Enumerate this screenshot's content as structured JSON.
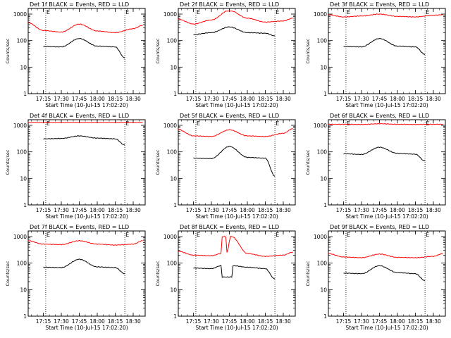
{
  "page": {
    "background": "#ffffff",
    "event_color": "#000000",
    "lld_color": "#ff0000"
  },
  "chart_data": [
    {
      "type": "line",
      "title": "Det 1f BLACK = Events, RED = LLD",
      "ylabel": "Counts/sec",
      "xlabel": "Start Time (10-Jul-15 17:02:20)",
      "y_scale": "log",
      "ylim": [
        1,
        1000
      ],
      "ytick_labels": [
        "1",
        "10",
        "100",
        "1000"
      ],
      "xtick_labels": [
        "17:15",
        "17:30",
        "17:45",
        "18:00",
        "18:15",
        "18:30"
      ],
      "markers": [
        "E",
        "E"
      ],
      "grid": false,
      "series": [
        {
          "name": "LLD",
          "color": "#ff0000",
          "x": [
            "17:02",
            "17:15",
            "17:30",
            "17:45",
            "18:00",
            "18:15",
            "18:30",
            "18:38"
          ],
          "values": [
            480,
            240,
            210,
            420,
            230,
            200,
            280,
            380
          ]
        },
        {
          "name": "Events",
          "color": "#000000",
          "x": [
            "17:15",
            "17:30",
            "17:45",
            "18:00",
            "18:15",
            "18:23"
          ],
          "values": [
            60,
            58,
            120,
            62,
            58,
            22
          ]
        }
      ]
    },
    {
      "type": "line",
      "title": "Det 2f BLACK = Events, RED = LLD",
      "ylabel": "Counts/sec",
      "xlabel": "Start Time (10-Jul-15 17:02:20)",
      "y_scale": "log",
      "ylim": [
        1,
        1000
      ],
      "ytick_labels": [
        "1",
        "10",
        "100",
        "1000"
      ],
      "xtick_labels": [
        "17:15",
        "17:30",
        "17:45",
        "18:00",
        "18:15",
        "18:30"
      ],
      "markers": [
        "E",
        "E"
      ],
      "grid": false,
      "series": [
        {
          "name": "LLD",
          "color": "#ff0000",
          "x": [
            "17:02",
            "17:15",
            "17:30",
            "17:45",
            "18:00",
            "18:15",
            "18:30",
            "18:38"
          ],
          "values": [
            650,
            420,
            600,
            1400,
            700,
            500,
            550,
            700
          ]
        },
        {
          "name": "Events",
          "color": "#000000",
          "x": [
            "17:15",
            "17:30",
            "17:45",
            "18:00",
            "18:15",
            "18:23"
          ],
          "values": [
            170,
            200,
            330,
            200,
            190,
            150
          ]
        }
      ]
    },
    {
      "type": "line",
      "title": "Det 3f BLACK = Events, RED = LLD",
      "ylabel": "Counts/sec",
      "xlabel": "Start Time (10-Jul-15 17:02:20)",
      "y_scale": "log",
      "ylim": [
        1,
        1000
      ],
      "ytick_labels": [
        "1",
        "10",
        "100",
        "1000"
      ],
      "xtick_labels": [
        "17:15",
        "17:30",
        "17:45",
        "18:00",
        "18:15",
        "18:30"
      ],
      "markers": [
        "E",
        "E"
      ],
      "grid": false,
      "series": [
        {
          "name": "LLD",
          "color": "#ff0000",
          "x": [
            "17:02",
            "17:15",
            "17:30",
            "17:45",
            "18:00",
            "18:15",
            "18:30",
            "18:38"
          ],
          "values": [
            950,
            780,
            850,
            1000,
            820,
            780,
            900,
            950
          ]
        },
        {
          "name": "Events",
          "color": "#000000",
          "x": [
            "17:15",
            "17:30",
            "17:45",
            "18:00",
            "18:15",
            "18:23"
          ],
          "values": [
            60,
            58,
            120,
            62,
            58,
            30
          ]
        }
      ]
    },
    {
      "type": "line",
      "title": "Det 4f BLACK = Events, RED = LLD",
      "ylabel": "Counts/sec",
      "xlabel": "Start Time (10-Jul-15 17:02:20)",
      "y_scale": "log",
      "ylim": [
        1,
        1000
      ],
      "ytick_labels": [
        "1",
        "10",
        "100",
        "1000"
      ],
      "xtick_labels": [
        "17:15",
        "17:30",
        "17:45",
        "18:00",
        "18:15",
        "18:30"
      ],
      "markers": [
        "E",
        "E"
      ],
      "grid": false,
      "series": [
        {
          "name": "LLD",
          "color": "#ff0000",
          "x": [
            "17:02",
            "17:15",
            "17:30",
            "17:45",
            "18:00",
            "18:15",
            "18:30",
            "18:38"
          ],
          "values": [
            1500,
            1500,
            1480,
            1700,
            1500,
            1450,
            1480,
            1550
          ]
        },
        {
          "name": "Events",
          "color": "#000000",
          "x": [
            "17:15",
            "17:30",
            "17:45",
            "18:00",
            "18:15",
            "18:23"
          ],
          "values": [
            310,
            320,
            400,
            330,
            310,
            180
          ]
        }
      ]
    },
    {
      "type": "line",
      "title": "Det 5f BLACK = Events, RED = LLD",
      "ylabel": "Counts/sec",
      "xlabel": "Start Time (10-Jul-15 17:02:20)",
      "y_scale": "log",
      "ylim": [
        1,
        1000
      ],
      "ytick_labels": [
        "1",
        "10",
        "100",
        "1000"
      ],
      "xtick_labels": [
        "17:15",
        "17:30",
        "17:45",
        "18:00",
        "18:15",
        "18:30"
      ],
      "markers": [
        "E",
        "E"
      ],
      "grid": false,
      "series": [
        {
          "name": "LLD",
          "color": "#ff0000",
          "x": [
            "17:02",
            "17:15",
            "17:30",
            "17:45",
            "18:00",
            "18:15",
            "18:30",
            "18:38"
          ],
          "values": [
            700,
            400,
            380,
            680,
            400,
            380,
            500,
            750
          ]
        },
        {
          "name": "Events",
          "color": "#000000",
          "x": [
            "17:15",
            "17:30",
            "17:45",
            "18:00",
            "18:15",
            "18:23"
          ],
          "values": [
            58,
            56,
            160,
            62,
            58,
            12
          ]
        }
      ]
    },
    {
      "type": "line",
      "title": "Det 6f BLACK = Events, RED = LLD",
      "ylabel": "Counts/sec",
      "xlabel": "Start Time (10-Jul-15 17:02:20)",
      "y_scale": "log",
      "ylim": [
        1,
        1000
      ],
      "ytick_labels": [
        "1",
        "10",
        "100",
        "1000"
      ],
      "xtick_labels": [
        "17:15",
        "17:30",
        "17:45",
        "18:00",
        "18:15",
        "18:30"
      ],
      "markers": [
        "E",
        "E"
      ],
      "grid": false,
      "series": [
        {
          "name": "LLD",
          "color": "#ff0000",
          "x": [
            "17:02",
            "17:15",
            "17:30",
            "17:45",
            "18:00",
            "18:15",
            "18:30",
            "18:38"
          ],
          "values": [
            1100,
            1100,
            1080,
            1150,
            1100,
            1080,
            1100,
            1100
          ]
        },
        {
          "name": "Events",
          "color": "#000000",
          "x": [
            "17:15",
            "17:30",
            "17:45",
            "18:00",
            "18:15",
            "18:23"
          ],
          "values": [
            85,
            80,
            150,
            88,
            82,
            45
          ]
        }
      ]
    },
    {
      "type": "line",
      "title": "Det 7f BLACK = Events, RED = LLD",
      "ylabel": "Counts/sec",
      "xlabel": "Start Time (10-Jul-15 17:02:20)",
      "y_scale": "log",
      "ylim": [
        1,
        1000
      ],
      "ytick_labels": [
        "1",
        "10",
        "100",
        "1000"
      ],
      "xtick_labels": [
        "17:15",
        "17:30",
        "17:45",
        "18:00",
        "18:15",
        "18:30"
      ],
      "markers": [
        "E",
        "E"
      ],
      "grid": false,
      "series": [
        {
          "name": "LLD",
          "color": "#ff0000",
          "x": [
            "17:02",
            "17:15",
            "17:30",
            "17:45",
            "18:00",
            "18:15",
            "18:30",
            "18:38"
          ],
          "values": [
            700,
            520,
            500,
            700,
            520,
            480,
            520,
            700
          ]
        },
        {
          "name": "Events",
          "color": "#000000",
          "x": [
            "17:15",
            "17:30",
            "17:45",
            "18:00",
            "18:15",
            "18:23"
          ],
          "values": [
            70,
            68,
            140,
            72,
            68,
            40
          ]
        }
      ]
    },
    {
      "type": "line",
      "title": "Det 8f BLACK = Events, RED = LLD",
      "ylabel": "Counts/sec",
      "xlabel": "Start Time (10-Jul-15 17:02:20)",
      "y_scale": "log",
      "ylim": [
        1,
        1000
      ],
      "ytick_labels": [
        "1",
        "10",
        "100",
        "1000"
      ],
      "xtick_labels": [
        "17:15",
        "17:30",
        "17:45",
        "18:00",
        "18:15",
        "18:30"
      ],
      "markers": [
        "E",
        "E"
      ],
      "grid": false,
      "series": [
        {
          "name": "LLD",
          "color": "#ff0000",
          "x": [
            "17:02",
            "17:15",
            "17:30",
            "17:38",
            "17:39",
            "17:42",
            "17:43",
            "17:46",
            "17:47",
            "18:00",
            "18:15",
            "18:30",
            "18:38"
          ],
          "values": [
            280,
            200,
            190,
            230,
            1000,
            1000,
            250,
            1000,
            1000,
            230,
            180,
            200,
            260
          ]
        },
        {
          "name": "Events",
          "color": "#000000",
          "x": [
            "17:15",
            "17:30",
            "17:38",
            "17:39",
            "17:47",
            "17:48",
            "18:00",
            "18:15",
            "18:23"
          ],
          "values": [
            65,
            62,
            80,
            30,
            30,
            80,
            70,
            62,
            25
          ]
        }
      ]
    },
    {
      "type": "line",
      "title": "Det 9f BLACK = Events, RED = LLD",
      "ylabel": "Counts/sec",
      "xlabel": "Start Time (10-Jul-15 17:02:20)",
      "y_scale": "log",
      "ylim": [
        1,
        1000
      ],
      "ytick_labels": [
        "1",
        "10",
        "100",
        "1000"
      ],
      "xtick_labels": [
        "17:15",
        "17:30",
        "17:45",
        "18:00",
        "18:15",
        "18:30"
      ],
      "markers": [
        "E",
        "E"
      ],
      "grid": false,
      "series": [
        {
          "name": "LLD",
          "color": "#ff0000",
          "x": [
            "17:02",
            "17:15",
            "17:30",
            "17:45",
            "18:00",
            "18:15",
            "18:30",
            "18:38"
          ],
          "values": [
            230,
            170,
            160,
            220,
            165,
            160,
            180,
            230
          ]
        },
        {
          "name": "Events",
          "color": "#000000",
          "x": [
            "17:15",
            "17:30",
            "17:45",
            "18:00",
            "18:15",
            "18:23"
          ],
          "values": [
            42,
            40,
            80,
            44,
            40,
            22
          ]
        }
      ]
    }
  ]
}
